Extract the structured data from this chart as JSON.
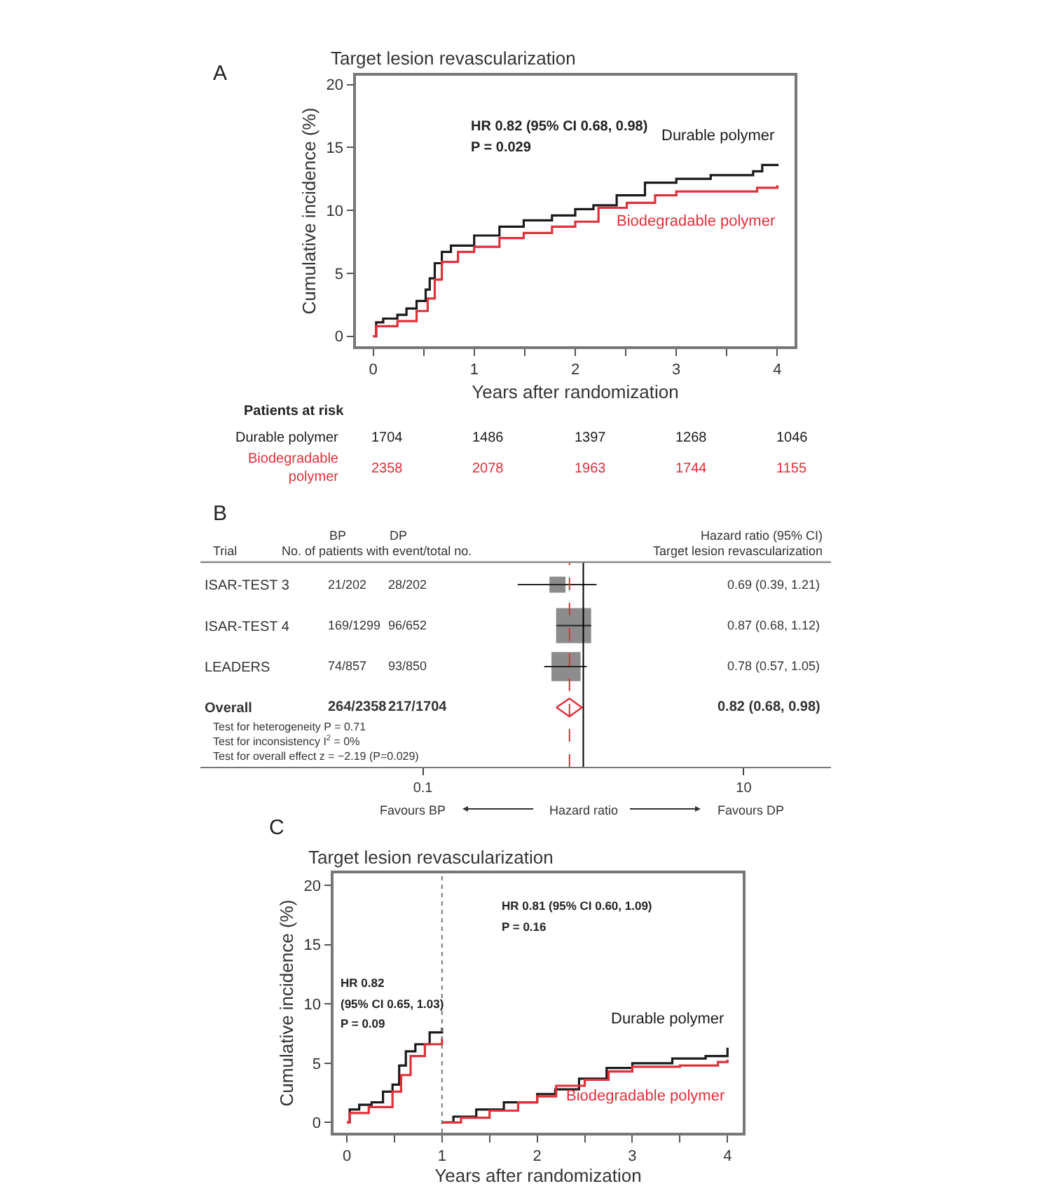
{
  "chart_data": [
    {
      "type": "step",
      "title": "Target lesion revascularization",
      "xlabel": "Years after randomization",
      "ylabel": "Cumulative incidence (%)",
      "xlim": [
        -0.17,
        4.17
      ],
      "ylim": [
        -0.8,
        20.7
      ],
      "xticks": [
        0,
        {
          "value": 0.5,
          "label": null
        },
        1,
        {
          "value": 1.5,
          "label": null
        },
        2,
        {
          "value": 2.5,
          "label": null
        },
        3,
        {
          "value": 3.5,
          "label": null
        },
        4
      ],
      "yticks": [
        0,
        5,
        10,
        15,
        20
      ],
      "annotations": [
        "A",
        "HR 0.82 (95% CI 0.68, 0.98)",
        "P = 0.029",
        "Patients at risk",
        "1704",
        "1486",
        "1397",
        "1268",
        "1046",
        "2358",
        "2078",
        "1963",
        "1744",
        "1155"
      ],
      "series": [
        {
          "name": "Durable polymer",
          "color": "#1a1a1a",
          "x": [
            0,
            0.03,
            0.1,
            0.24,
            0.33,
            0.43,
            0.52,
            0.56,
            0.61,
            0.68,
            0.77,
            1.0,
            1.25,
            1.49,
            1.77,
            2.0,
            2.18,
            2.41,
            2.69,
            3.0,
            3.34,
            3.76,
            3.85,
            4.0
          ],
          "values": [
            0,
            1.1,
            1.4,
            1.7,
            2.2,
            2.8,
            3.7,
            4.6,
            5.8,
            6.7,
            7.2,
            8.0,
            8.7,
            9.2,
            9.6,
            10.1,
            10.4,
            11.2,
            12.2,
            12.5,
            12.8,
            13.1,
            13.6,
            13.7
          ]
        },
        {
          "name": "Biodegradable polymer",
          "color": "#e0303a",
          "x": [
            0,
            0.03,
            0.24,
            0.43,
            0.54,
            0.61,
            0.68,
            0.84,
            1.0,
            1.25,
            1.49,
            1.77,
            2.0,
            2.23,
            2.51,
            2.79,
            3.0,
            3.34,
            3.8,
            4.0
          ],
          "values": [
            0,
            0.8,
            1.2,
            2.0,
            3.0,
            4.5,
            5.9,
            6.7,
            7.1,
            7.8,
            8.2,
            8.7,
            9.1,
            10.2,
            10.6,
            11.2,
            11.5,
            11.5,
            11.8,
            12.0
          ]
        }
      ]
    },
    {
      "type": "scatter",
      "orientation": "horizontal",
      "categories": [
        "ISAR-TEST 3",
        "ISAR-TEST 4",
        "LEADERS",
        "Overall"
      ],
      "xlabel": "Hazard ratio",
      "log": "x",
      "xlim": [
        0.0041,
        35
      ],
      "xticks": [
        0.1,
        10
      ],
      "ref_lines": [
        {
          "axis": "x",
          "value": 1,
          "color": "#000000",
          "line_style": "solid"
        },
        {
          "axis": "x",
          "value": 0.82,
          "color": "#e0303a",
          "line_style": "dashed"
        }
      ],
      "annotations": [
        "B",
        "Trial",
        "BP",
        "DP",
        "No. of patients with event/total no.",
        "Hazard ratio (95% CI)",
        "Target lesion revascularization",
        "21/202",
        "28/202",
        "169/1299",
        "96/652",
        "74/857",
        "93/850",
        "264/2358",
        "217/1704",
        "Test for heterogeneity P = 0.71",
        "Test for inconsistency I$^{2}$ = 0%",
        "Test for overall effect z = −2.19 (P=0.029)",
        "Favours BP",
        "Favours DP",
        "0.69 (0.39, 1.21)",
        "0.87 (0.68, 1.12)",
        "0.78 (0.57, 1.05)",
        "0.82 (0.68, 0.98)"
      ],
      "series": [
        {
          "type": "bubble",
          "marker": "square",
          "color": "#8c8c8c",
          "values": [
            0.69,
            0.87,
            0.78,
            null
          ],
          "sizes": [
            0.21,
            1,
            0.69,
            null
          ],
          "errors": [
            [
              0.39,
              1.21
            ],
            [
              0.68,
              1.12
            ],
            [
              0.57,
              1.05
            ],
            null
          ]
        },
        {
          "type": "scatter",
          "marker": "diamond",
          "color": "#e0303a",
          "values": [
            null,
            null,
            null,
            0.82
          ],
          "errors": [
            null,
            null,
            null,
            [
              0.68,
              0.98
            ]
          ]
        }
      ]
    },
    {
      "type": "step",
      "title": "Target lesion revascularization",
      "xlabel": "Years after randomization",
      "ylabel": "Cumulative incidence (%)",
      "xlim": [
        -0.14,
        4.16
      ],
      "ylim": [
        -0.86,
        21.0
      ],
      "xticks": [
        0,
        {
          "value": 0.5,
          "label": null
        },
        1,
        {
          "value": 1.5,
          "label": null
        },
        2,
        {
          "value": 2.5,
          "label": null
        },
        3,
        {
          "value": 3.5,
          "label": null
        },
        4
      ],
      "yticks": [
        0,
        5,
        10,
        15,
        20
      ],
      "ref_lines": [
        {
          "axis": "x",
          "value": 1,
          "color": "#777777",
          "line_style": "dotted"
        }
      ],
      "annotations": [
        "C",
        "HR 0.81 (95% CI 0.60, 1.09)",
        "P = 0.16",
        "HR 0.82",
        "(95% CI 0.65, 1.03)",
        "P = 0.09"
      ],
      "series": [
        {
          "color": "#1a1a1a",
          "x": [
            0,
            0.03,
            0.13,
            0.26,
            0.38,
            0.48,
            0.55,
            0.62,
            0.72,
            0.87,
            1.0
          ],
          "values": [
            0,
            1.1,
            1.5,
            1.7,
            2.6,
            3.2,
            4.8,
            6.0,
            6.6,
            7.6,
            8.0
          ]
        },
        {
          "color": "#e0303a",
          "x": [
            0,
            0.03,
            0.23,
            0.48,
            0.57,
            0.67,
            0.82,
            1.0
          ],
          "values": [
            0,
            0.8,
            1.3,
            2.6,
            4.0,
            5.6,
            6.6,
            7.1
          ]
        },
        {
          "name": "Durable polymer",
          "color": "#1a1a1a",
          "x": [
            1.0,
            1.12,
            1.36,
            1.65,
            2.0,
            2.19,
            2.44,
            2.73,
            3.0,
            3.42,
            3.77,
            4.0
          ],
          "values": [
            0,
            0.5,
            1.1,
            1.7,
            2.4,
            2.8,
            3.7,
            4.6,
            5.0,
            5.4,
            5.6,
            6.3
          ]
        },
        {
          "name": "Biodegradable polymer",
          "color": "#e0303a",
          "x": [
            1.0,
            1.2,
            1.5,
            1.8,
            2.0,
            2.2,
            2.5,
            2.75,
            3.0,
            3.5,
            3.9,
            4.0
          ],
          "values": [
            0,
            0.4,
            1.0,
            1.7,
            2.2,
            3.1,
            3.6,
            4.3,
            4.7,
            4.8,
            5.1,
            5.3
          ]
        }
      ]
    }
  ]
}
